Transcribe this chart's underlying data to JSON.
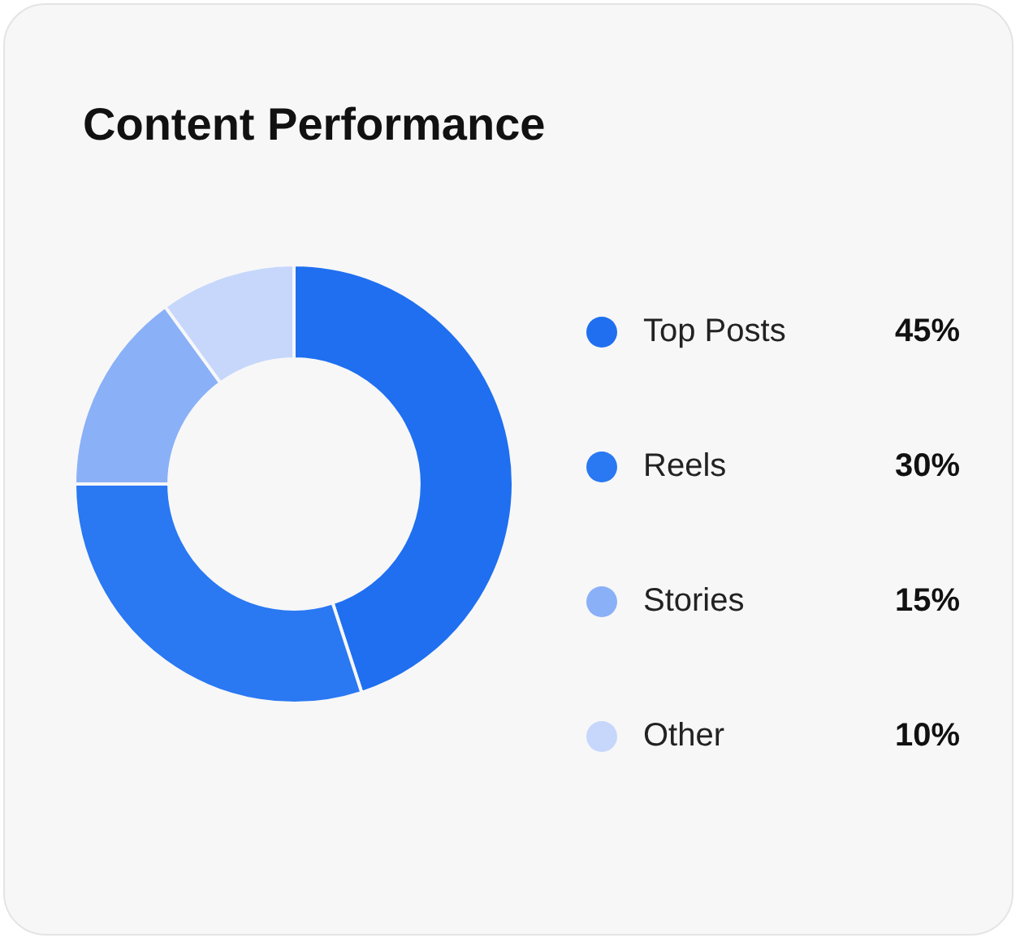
{
  "chart_data": {
    "type": "donut",
    "title": "Content Performance",
    "categories": [
      "Top Posts",
      "Reels",
      "Stories",
      "Other"
    ],
    "values": [
      45,
      30,
      15,
      10
    ],
    "colors": [
      "#1f6ff0",
      "#2a78f2",
      "#8ab0f7",
      "#c6d7fb"
    ],
    "value_labels": [
      "45%",
      "30%",
      "15%",
      "10%"
    ],
    "legend": "right"
  }
}
